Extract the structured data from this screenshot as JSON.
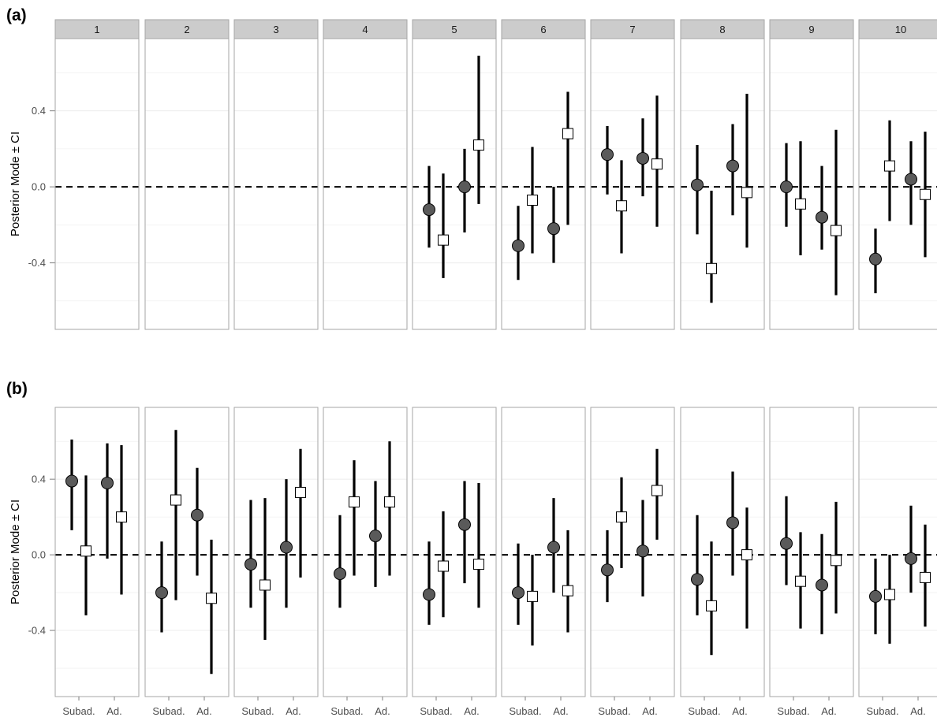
{
  "chart_data": [
    {
      "type": "scatter",
      "panel_label": "(a)",
      "ylabel": "Posterior Mode ± CI",
      "ylim": [
        -0.75,
        0.78
      ],
      "yticks": [
        "0.4",
        "0.0",
        "-0.4"
      ],
      "yticks_values": [
        0.4,
        0.0,
        -0.4
      ],
      "strip_labels": [
        "1",
        "2",
        "3",
        "4",
        "5",
        "6",
        "7",
        "8",
        "9",
        "10"
      ],
      "x_categories": [],
      "reference_line": 0,
      "facets": [
        {
          "label": "1",
          "points": []
        },
        {
          "label": "2",
          "points": []
        },
        {
          "label": "3",
          "points": []
        },
        {
          "label": "4",
          "points": []
        },
        {
          "label": "5",
          "points": [
            {
              "group": "Subad.",
              "shape": "circle",
              "y": -0.12,
              "lo": -0.32,
              "hi": 0.11
            },
            {
              "group": "Subad.",
              "shape": "square",
              "y": -0.28,
              "lo": -0.48,
              "hi": 0.07
            },
            {
              "group": "Ad.",
              "shape": "circle",
              "y": 0.0,
              "lo": -0.24,
              "hi": 0.2
            },
            {
              "group": "Ad.",
              "shape": "square",
              "y": 0.22,
              "lo": -0.09,
              "hi": 0.69
            }
          ]
        },
        {
          "label": "6",
          "points": [
            {
              "group": "Subad.",
              "shape": "circle",
              "y": -0.31,
              "lo": -0.49,
              "hi": -0.1
            },
            {
              "group": "Subad.",
              "shape": "square",
              "y": -0.07,
              "lo": -0.35,
              "hi": 0.21
            },
            {
              "group": "Ad.",
              "shape": "circle",
              "y": -0.22,
              "lo": -0.4,
              "hi": 0.0
            },
            {
              "group": "Ad.",
              "shape": "square",
              "y": 0.28,
              "lo": -0.2,
              "hi": 0.5
            }
          ]
        },
        {
          "label": "7",
          "points": [
            {
              "group": "Subad.",
              "shape": "circle",
              "y": 0.17,
              "lo": -0.04,
              "hi": 0.32
            },
            {
              "group": "Subad.",
              "shape": "square",
              "y": -0.1,
              "lo": -0.35,
              "hi": 0.14
            },
            {
              "group": "Ad.",
              "shape": "circle",
              "y": 0.15,
              "lo": -0.05,
              "hi": 0.36
            },
            {
              "group": "Ad.",
              "shape": "square",
              "y": 0.12,
              "lo": -0.21,
              "hi": 0.48
            }
          ]
        },
        {
          "label": "8",
          "points": [
            {
              "group": "Subad.",
              "shape": "circle",
              "y": 0.01,
              "lo": -0.25,
              "hi": 0.22
            },
            {
              "group": "Subad.",
              "shape": "square",
              "y": -0.43,
              "lo": -0.61,
              "hi": -0.02
            },
            {
              "group": "Ad.",
              "shape": "circle",
              "y": 0.11,
              "lo": -0.15,
              "hi": 0.33
            },
            {
              "group": "Ad.",
              "shape": "square",
              "y": -0.03,
              "lo": -0.32,
              "hi": 0.49
            }
          ]
        },
        {
          "label": "9",
          "points": [
            {
              "group": "Subad.",
              "shape": "circle",
              "y": 0.0,
              "lo": -0.21,
              "hi": 0.23
            },
            {
              "group": "Subad.",
              "shape": "square",
              "y": -0.09,
              "lo": -0.36,
              "hi": 0.24
            },
            {
              "group": "Ad.",
              "shape": "circle",
              "y": -0.16,
              "lo": -0.33,
              "hi": 0.11
            },
            {
              "group": "Ad.",
              "shape": "square",
              "y": -0.23,
              "lo": -0.57,
              "hi": 0.3
            }
          ]
        },
        {
          "label": "10",
          "points": [
            {
              "group": "Subad.",
              "shape": "circle",
              "y": -0.38,
              "lo": -0.56,
              "hi": -0.22
            },
            {
              "group": "Subad.",
              "shape": "square",
              "y": 0.11,
              "lo": -0.18,
              "hi": 0.35
            },
            {
              "group": "Ad.",
              "shape": "circle",
              "y": 0.04,
              "lo": -0.2,
              "hi": 0.24
            },
            {
              "group": "Ad.",
              "shape": "square",
              "y": -0.04,
              "lo": -0.37,
              "hi": 0.29
            }
          ]
        }
      ]
    },
    {
      "type": "scatter",
      "panel_label": "(b)",
      "ylabel": "Posterior Mode ± CI",
      "ylim": [
        -0.75,
        0.78
      ],
      "yticks": [
        "0.4",
        "0.0",
        "-0.4"
      ],
      "yticks_values": [
        0.4,
        0.0,
        -0.4
      ],
      "strip_labels": [],
      "x_categories": [
        "Subad.",
        "Ad."
      ],
      "reference_line": 0,
      "facets": [
        {
          "label": "1",
          "points": [
            {
              "group": "Subad.",
              "shape": "circle",
              "y": 0.39,
              "lo": 0.13,
              "hi": 0.61
            },
            {
              "group": "Subad.",
              "shape": "square",
              "y": 0.02,
              "lo": -0.32,
              "hi": 0.42
            },
            {
              "group": "Ad.",
              "shape": "circle",
              "y": 0.38,
              "lo": -0.02,
              "hi": 0.59
            },
            {
              "group": "Ad.",
              "shape": "square",
              "y": 0.2,
              "lo": -0.21,
              "hi": 0.58
            }
          ]
        },
        {
          "label": "2",
          "points": [
            {
              "group": "Subad.",
              "shape": "circle",
              "y": -0.2,
              "lo": -0.41,
              "hi": 0.07
            },
            {
              "group": "Subad.",
              "shape": "square",
              "y": 0.29,
              "lo": -0.24,
              "hi": 0.66
            },
            {
              "group": "Ad.",
              "shape": "circle",
              "y": 0.21,
              "lo": -0.11,
              "hi": 0.46
            },
            {
              "group": "Ad.",
              "shape": "square",
              "y": -0.23,
              "lo": -0.63,
              "hi": 0.08
            }
          ]
        },
        {
          "label": "3",
          "points": [
            {
              "group": "Subad.",
              "shape": "circle",
              "y": -0.05,
              "lo": -0.28,
              "hi": 0.29
            },
            {
              "group": "Subad.",
              "shape": "square",
              "y": -0.16,
              "lo": -0.45,
              "hi": 0.3
            },
            {
              "group": "Ad.",
              "shape": "circle",
              "y": 0.04,
              "lo": -0.28,
              "hi": 0.4
            },
            {
              "group": "Ad.",
              "shape": "square",
              "y": 0.33,
              "lo": -0.12,
              "hi": 0.56
            }
          ]
        },
        {
          "label": "4",
          "points": [
            {
              "group": "Subad.",
              "shape": "circle",
              "y": -0.1,
              "lo": -0.28,
              "hi": 0.21
            },
            {
              "group": "Subad.",
              "shape": "square",
              "y": 0.28,
              "lo": -0.11,
              "hi": 0.5
            },
            {
              "group": "Ad.",
              "shape": "circle",
              "y": 0.1,
              "lo": -0.17,
              "hi": 0.39
            },
            {
              "group": "Ad.",
              "shape": "square",
              "y": 0.28,
              "lo": -0.11,
              "hi": 0.6
            }
          ]
        },
        {
          "label": "5",
          "points": [
            {
              "group": "Subad.",
              "shape": "circle",
              "y": -0.21,
              "lo": -0.37,
              "hi": 0.07
            },
            {
              "group": "Subad.",
              "shape": "square",
              "y": -0.06,
              "lo": -0.33,
              "hi": 0.23
            },
            {
              "group": "Ad.",
              "shape": "circle",
              "y": 0.16,
              "lo": -0.15,
              "hi": 0.39
            },
            {
              "group": "Ad.",
              "shape": "square",
              "y": -0.05,
              "lo": -0.28,
              "hi": 0.38
            }
          ]
        },
        {
          "label": "6",
          "points": [
            {
              "group": "Subad.",
              "shape": "circle",
              "y": -0.2,
              "lo": -0.37,
              "hi": 0.06
            },
            {
              "group": "Subad.",
              "shape": "square",
              "y": -0.22,
              "lo": -0.48,
              "hi": 0.0
            },
            {
              "group": "Ad.",
              "shape": "circle",
              "y": 0.04,
              "lo": -0.2,
              "hi": 0.3
            },
            {
              "group": "Ad.",
              "shape": "square",
              "y": -0.19,
              "lo": -0.41,
              "hi": 0.13
            }
          ]
        },
        {
          "label": "7",
          "points": [
            {
              "group": "Subad.",
              "shape": "circle",
              "y": -0.08,
              "lo": -0.25,
              "hi": 0.13
            },
            {
              "group": "Subad.",
              "shape": "square",
              "y": 0.2,
              "lo": -0.07,
              "hi": 0.41
            },
            {
              "group": "Ad.",
              "shape": "circle",
              "y": 0.02,
              "lo": -0.22,
              "hi": 0.29
            },
            {
              "group": "Ad.",
              "shape": "square",
              "y": 0.34,
              "lo": 0.08,
              "hi": 0.56
            }
          ]
        },
        {
          "label": "8",
          "points": [
            {
              "group": "Subad.",
              "shape": "circle",
              "y": -0.13,
              "lo": -0.32,
              "hi": 0.21
            },
            {
              "group": "Subad.",
              "shape": "square",
              "y": -0.27,
              "lo": -0.53,
              "hi": 0.07
            },
            {
              "group": "Ad.",
              "shape": "circle",
              "y": 0.17,
              "lo": -0.11,
              "hi": 0.44
            },
            {
              "group": "Ad.",
              "shape": "square",
              "y": 0.0,
              "lo": -0.39,
              "hi": 0.25
            }
          ]
        },
        {
          "label": "9",
          "points": [
            {
              "group": "Subad.",
              "shape": "circle",
              "y": 0.06,
              "lo": -0.16,
              "hi": 0.31
            },
            {
              "group": "Subad.",
              "shape": "square",
              "y": -0.14,
              "lo": -0.39,
              "hi": 0.12
            },
            {
              "group": "Ad.",
              "shape": "circle",
              "y": -0.16,
              "lo": -0.42,
              "hi": 0.11
            },
            {
              "group": "Ad.",
              "shape": "square",
              "y": -0.03,
              "lo": -0.31,
              "hi": 0.28
            }
          ]
        },
        {
          "label": "10",
          "points": [
            {
              "group": "Subad.",
              "shape": "circle",
              "y": -0.22,
              "lo": -0.42,
              "hi": -0.02
            },
            {
              "group": "Subad.",
              "shape": "square",
              "y": -0.21,
              "lo": -0.47,
              "hi": 0.0
            },
            {
              "group": "Ad.",
              "shape": "circle",
              "y": -0.02,
              "lo": -0.2,
              "hi": 0.26
            },
            {
              "group": "Ad.",
              "shape": "square",
              "y": -0.12,
              "lo": -0.38,
              "hi": 0.16
            }
          ]
        }
      ]
    }
  ],
  "colors": {
    "circle_fill": "#5a5a5a",
    "square_fill": "#ffffff",
    "marker_stroke": "#000000",
    "strip_fill": "#cccccc",
    "panel_border": "#a6a6a6",
    "grid": "#ececec"
  }
}
